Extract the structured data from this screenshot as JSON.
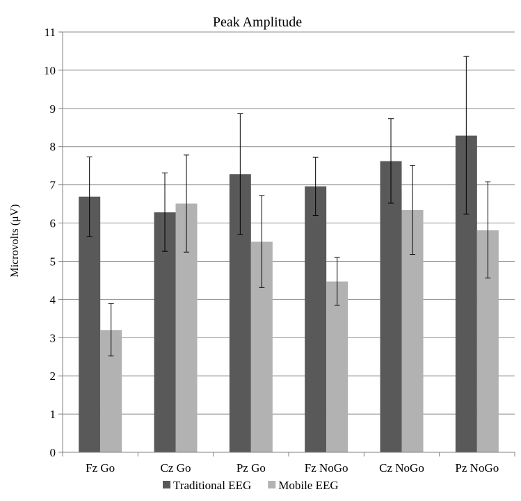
{
  "chart_data": {
    "type": "bar",
    "title": "Peak Amplitude",
    "xlabel": "",
    "ylabel": "Microvolts (μV)",
    "ylim": [
      0,
      11
    ],
    "yticks": [
      0,
      1,
      2,
      3,
      4,
      5,
      6,
      7,
      8,
      9,
      10,
      11
    ],
    "grid": "horizontal",
    "legend_position": "bottom",
    "categories": [
      "Fz Go",
      "Cz Go",
      "Pz Go",
      "Fz NoGo",
      "Cz NoGo",
      "Pz NoGo"
    ],
    "series": [
      {
        "name": "Traditional EEG",
        "color": "#595959",
        "values": [
          6.69,
          6.28,
          7.28,
          6.96,
          7.62,
          8.29
        ],
        "error_low": [
          5.65,
          5.26,
          5.7,
          6.2,
          6.52,
          6.23
        ],
        "error_high": [
          7.73,
          7.31,
          8.86,
          7.72,
          8.73,
          10.36
        ]
      },
      {
        "name": "Mobile EEG",
        "color": "#b2b2b2",
        "values": [
          3.2,
          6.51,
          5.51,
          4.47,
          6.34,
          5.81
        ],
        "error_low": [
          2.52,
          5.24,
          4.31,
          3.85,
          5.18,
          4.56
        ],
        "error_high": [
          3.89,
          7.78,
          6.72,
          5.1,
          7.51,
          7.08
        ]
      }
    ]
  }
}
